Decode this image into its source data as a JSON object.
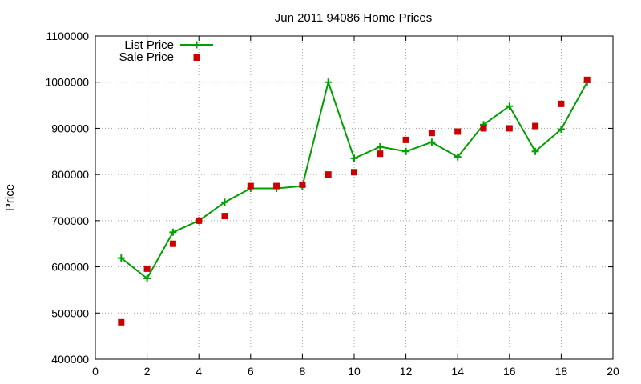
{
  "chart_data": {
    "type": "line",
    "title": "Jun 2011 94086 Home Prices",
    "xlabel": "",
    "ylabel": "Price",
    "xlim": [
      0,
      20
    ],
    "ylim": [
      400000,
      1100000
    ],
    "x_ticks": [
      0,
      2,
      4,
      6,
      8,
      10,
      12,
      14,
      16,
      18,
      20
    ],
    "y_ticks": [
      400000,
      500000,
      600000,
      700000,
      800000,
      900000,
      1000000,
      1100000
    ],
    "grid": true,
    "legend_position": "top-left",
    "series": [
      {
        "name": "List Price",
        "style": "line-with-plus-markers",
        "color": "#00a000",
        "x": [
          1,
          2,
          3,
          4,
          5,
          6,
          7,
          8,
          9,
          10,
          11,
          12,
          13,
          14,
          15,
          16,
          17,
          18,
          19
        ],
        "values": [
          619000,
          575000,
          675000,
          700000,
          740000,
          770000,
          770000,
          775000,
          1000000,
          835000,
          860000,
          850000,
          870000,
          838000,
          908000,
          948000,
          850000,
          898000,
          1000000
        ]
      },
      {
        "name": "Sale Price",
        "style": "square-markers",
        "color": "#cc0000",
        "x": [
          1,
          2,
          3,
          4,
          5,
          6,
          7,
          8,
          9,
          10,
          11,
          12,
          13,
          14,
          15,
          16,
          17,
          18,
          19
        ],
        "values": [
          480000,
          596000,
          650000,
          700000,
          710000,
          775000,
          775000,
          778000,
          800000,
          805000,
          845000,
          875000,
          890000,
          893000,
          900000,
          900000,
          905000,
          953000,
          1005000
        ]
      }
    ]
  }
}
